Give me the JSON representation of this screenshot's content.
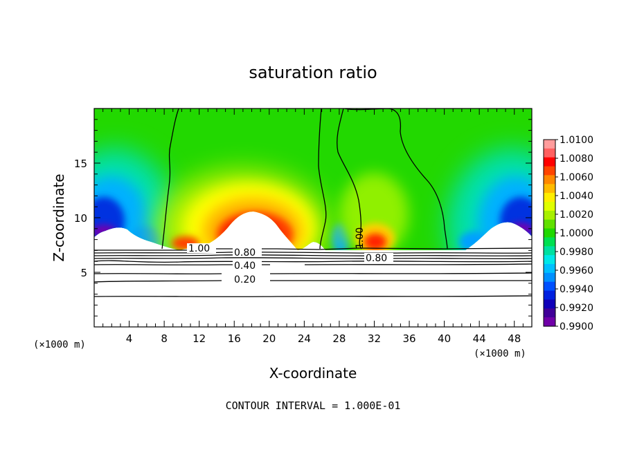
{
  "chart_data": {
    "type": "heatmap",
    "title": "saturation ratio",
    "xlabel": "X-coordinate",
    "ylabel": "Z-coordinate",
    "x_unit_label_left": "(×1000 m)",
    "x_unit_label_right": "(×1000 m)",
    "xlim": [
      0,
      50
    ],
    "ylim": [
      0,
      20
    ],
    "x_ticks": [
      4,
      8,
      12,
      16,
      20,
      24,
      28,
      32,
      36,
      40,
      44,
      48
    ],
    "y_ticks": [
      5,
      10,
      15
    ],
    "colorbar": {
      "min": 0.99,
      "max": 1.01,
      "labels": [
        "1.0100",
        "1.0080",
        "1.0060",
        "1.0040",
        "1.0020",
        "1.0000",
        "0.9980",
        "0.9960",
        "0.9940",
        "0.9920",
        "0.9900"
      ]
    },
    "contour_labels": [
      "1.00",
      "0.80",
      "0.40",
      "0.20",
      "1.00",
      "0.80"
    ],
    "contour_interval_text": "CONTOUR INTERVAL = 1.000E-01",
    "regions": {
      "near_saturated_base_z": 7,
      "supersaturated_maxima": [
        {
          "x": 18,
          "z": 9.5,
          "value": 1.009
        },
        {
          "x": 31.5,
          "z": 7.5,
          "value": 1.006
        }
      ],
      "subsaturated_minima": [
        {
          "x": 2,
          "z": 10,
          "value": 0.991
        },
        {
          "x": 48,
          "z": 10,
          "value": 0.991
        }
      ]
    },
    "grid": false,
    "legend": "colorbar-right"
  }
}
